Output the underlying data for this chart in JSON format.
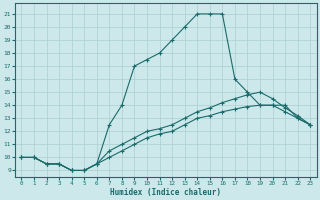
{
  "title": "",
  "xlabel": "Humidex (Indice chaleur)",
  "bg_color": "#cce8ea",
  "line_color": "#1a6b6b",
  "grid_color": "#aacfd2",
  "xlim": [
    -0.5,
    23.5
  ],
  "ylim": [
    8.5,
    21.8
  ],
  "yticks": [
    9,
    10,
    11,
    12,
    13,
    14,
    15,
    16,
    17,
    18,
    19,
    20,
    21
  ],
  "xticks": [
    0,
    1,
    2,
    3,
    4,
    5,
    6,
    7,
    8,
    9,
    10,
    11,
    12,
    13,
    14,
    15,
    16,
    17,
    18,
    19,
    20,
    21,
    22,
    23
  ],
  "curves": [
    {
      "x": [
        0,
        1,
        2,
        3,
        4,
        5,
        6,
        7,
        8,
        9,
        10,
        11,
        12,
        13,
        14,
        15,
        16,
        17,
        18,
        19,
        20,
        21,
        22,
        23
      ],
      "y": [
        10,
        10,
        9.5,
        9.5,
        9.0,
        9.0,
        9.5,
        12.5,
        14.0,
        17.0,
        17.5,
        18.0,
        19.0,
        20.0,
        21.0,
        21.0,
        21.0,
        16.0,
        15.0,
        14.0,
        14.0,
        14.0,
        13.0,
        12.5
      ]
    },
    {
      "x": [
        0,
        1,
        2,
        3,
        4,
        5,
        6,
        7,
        8,
        9,
        10,
        11,
        12,
        13,
        14,
        15,
        16,
        17,
        18,
        19,
        20,
        21,
        22,
        23
      ],
      "y": [
        10,
        10,
        9.5,
        9.5,
        9.0,
        9.0,
        9.5,
        10.0,
        10.5,
        11.0,
        11.5,
        11.8,
        12.0,
        12.5,
        13.0,
        13.2,
        13.5,
        13.7,
        13.9,
        14.0,
        14.0,
        13.5,
        13.0,
        12.5
      ]
    },
    {
      "x": [
        0,
        1,
        2,
        3,
        4,
        5,
        6,
        7,
        8,
        9,
        10,
        11,
        12,
        13,
        14,
        15,
        16,
        17,
        18,
        19,
        20,
        21,
        22,
        23
      ],
      "y": [
        10,
        10,
        9.5,
        9.5,
        9.0,
        9.0,
        9.5,
        10.5,
        11.0,
        11.5,
        12.0,
        12.2,
        12.5,
        13.0,
        13.5,
        13.8,
        14.2,
        14.5,
        14.8,
        15.0,
        14.5,
        13.8,
        13.2,
        12.5
      ]
    }
  ]
}
